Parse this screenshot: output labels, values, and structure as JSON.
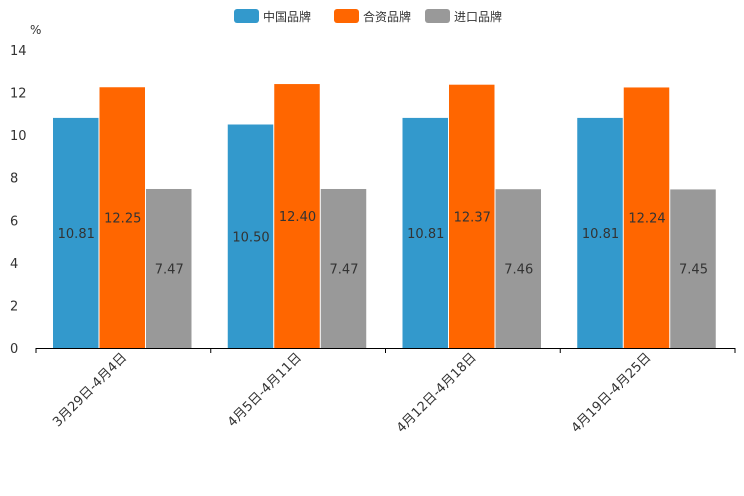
{
  "chart_data": {
    "type": "bar",
    "title": "",
    "xlabel": "",
    "ylabel": "%",
    "ylim": [
      0,
      14
    ],
    "yticks": [
      0,
      2,
      4,
      6,
      8,
      10,
      12,
      14
    ],
    "grid": false,
    "legend_position": "top-center",
    "categories": [
      "3月29日-4月4日",
      "4月5日-4月11日",
      "4月12日-4月18日",
      "4月19日-4月25日"
    ],
    "series": [
      {
        "name": "中国品牌",
        "color": "#3399cc",
        "values": [
          10.81,
          10.5,
          10.81,
          10.81
        ]
      },
      {
        "name": "合资品牌",
        "color": "#ff6600",
        "values": [
          12.25,
          12.4,
          12.37,
          12.24
        ]
      },
      {
        "name": "进口品牌",
        "color": "#999999",
        "values": [
          7.47,
          7.47,
          7.46,
          7.45
        ]
      }
    ]
  }
}
